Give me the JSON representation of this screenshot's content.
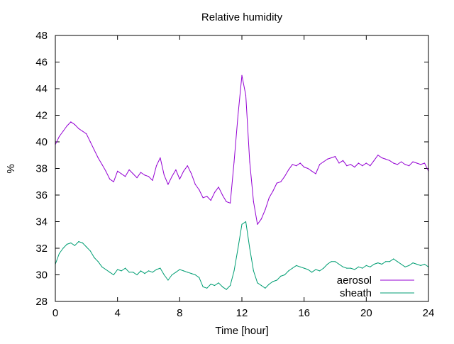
{
  "chart_data": {
    "type": "line",
    "title": "Relative humidity",
    "xlabel": "Time [hour]",
    "ylabel": "%",
    "xlim": [
      0,
      24
    ],
    "ylim": [
      28,
      48
    ],
    "xticks": [
      0,
      4,
      8,
      12,
      16,
      20,
      24
    ],
    "yticks": [
      28,
      30,
      32,
      34,
      36,
      38,
      40,
      42,
      44,
      46,
      48
    ],
    "grid": false,
    "legend_position": "bottom-right",
    "series": [
      {
        "name": "aerosol",
        "color": "#9400d3",
        "x": [
          0,
          0.25,
          0.5,
          0.75,
          1.0,
          1.25,
          1.5,
          1.75,
          2.0,
          2.25,
          2.5,
          2.75,
          3.0,
          3.25,
          3.5,
          3.75,
          4.0,
          4.25,
          4.5,
          4.75,
          5.0,
          5.25,
          5.5,
          5.75,
          6.0,
          6.25,
          6.5,
          6.75,
          7.0,
          7.25,
          7.5,
          7.75,
          8.0,
          8.25,
          8.5,
          8.75,
          9.0,
          9.25,
          9.5,
          9.75,
          10.0,
          10.25,
          10.5,
          10.75,
          11.0,
          11.25,
          11.5,
          11.75,
          12.0,
          12.25,
          12.5,
          12.75,
          13.0,
          13.25,
          13.5,
          13.75,
          14.0,
          14.25,
          14.5,
          14.75,
          15.0,
          15.25,
          15.5,
          15.75,
          16.0,
          16.25,
          16.5,
          16.75,
          17.0,
          17.25,
          17.5,
          17.75,
          18.0,
          18.25,
          18.5,
          18.75,
          19.0,
          19.25,
          19.5,
          19.75,
          20.0,
          20.25,
          20.5,
          20.75,
          21.0,
          21.25,
          21.5,
          21.75,
          22.0,
          22.25,
          22.5,
          22.75,
          23.0,
          23.25,
          23.5,
          23.75,
          24.0
        ],
        "y": [
          39.8,
          40.4,
          40.8,
          41.2,
          41.5,
          41.3,
          41.0,
          40.8,
          40.6,
          40.0,
          39.4,
          38.8,
          38.3,
          37.8,
          37.2,
          37.0,
          37.8,
          37.6,
          37.4,
          37.9,
          37.6,
          37.3,
          37.7,
          37.5,
          37.4,
          37.1,
          38.2,
          38.8,
          37.5,
          36.8,
          37.4,
          37.9,
          37.2,
          37.8,
          38.2,
          37.6,
          36.8,
          36.4,
          35.8,
          35.9,
          35.6,
          36.2,
          36.6,
          36.0,
          35.5,
          35.4,
          38.5,
          42.0,
          45.0,
          43.5,
          38.5,
          35.5,
          33.8,
          34.2,
          34.9,
          35.8,
          36.3,
          36.9,
          37.0,
          37.4,
          37.9,
          38.3,
          38.2,
          38.4,
          38.1,
          38.0,
          37.8,
          37.6,
          38.3,
          38.5,
          38.7,
          38.8,
          38.9,
          38.4,
          38.6,
          38.2,
          38.3,
          38.1,
          38.4,
          38.2,
          38.4,
          38.2,
          38.6,
          39.0,
          38.8,
          38.7,
          38.6,
          38.4,
          38.3,
          38.5,
          38.3,
          38.2,
          38.5,
          38.4,
          38.3,
          38.4,
          37.8
        ]
      },
      {
        "name": "sheath",
        "color": "#009e73",
        "x": [
          0,
          0.25,
          0.5,
          0.75,
          1.0,
          1.25,
          1.5,
          1.75,
          2.0,
          2.25,
          2.5,
          2.75,
          3.0,
          3.25,
          3.5,
          3.75,
          4.0,
          4.25,
          4.5,
          4.75,
          5.0,
          5.25,
          5.5,
          5.75,
          6.0,
          6.25,
          6.5,
          6.75,
          7.0,
          7.25,
          7.5,
          7.75,
          8.0,
          8.25,
          8.5,
          8.75,
          9.0,
          9.25,
          9.5,
          9.75,
          10.0,
          10.25,
          10.5,
          10.75,
          11.0,
          11.25,
          11.5,
          11.75,
          12.0,
          12.25,
          12.5,
          12.75,
          13.0,
          13.25,
          13.5,
          13.75,
          14.0,
          14.25,
          14.5,
          14.75,
          15.0,
          15.25,
          15.5,
          15.75,
          16.0,
          16.25,
          16.5,
          16.75,
          17.0,
          17.25,
          17.5,
          17.75,
          18.0,
          18.25,
          18.5,
          18.75,
          19.0,
          19.25,
          19.5,
          19.75,
          20.0,
          20.25,
          20.5,
          20.75,
          21.0,
          21.25,
          21.5,
          21.75,
          22.0,
          22.25,
          22.5,
          22.75,
          23.0,
          23.25,
          23.5,
          23.75,
          24.0
        ],
        "y": [
          30.8,
          31.6,
          32.0,
          32.3,
          32.4,
          32.2,
          32.5,
          32.4,
          32.1,
          31.8,
          31.3,
          31.0,
          30.6,
          30.4,
          30.2,
          30.0,
          30.4,
          30.3,
          30.5,
          30.2,
          30.2,
          30.0,
          30.3,
          30.1,
          30.3,
          30.2,
          30.4,
          30.5,
          30.0,
          29.6,
          30.0,
          30.2,
          30.4,
          30.3,
          30.2,
          30.1,
          30.0,
          29.8,
          29.1,
          29.0,
          29.3,
          29.2,
          29.4,
          29.1,
          28.9,
          29.2,
          30.3,
          32.0,
          33.8,
          34.0,
          32.0,
          30.3,
          29.4,
          29.2,
          29.0,
          29.3,
          29.5,
          29.6,
          29.9,
          30.0,
          30.3,
          30.5,
          30.7,
          30.6,
          30.5,
          30.4,
          30.2,
          30.4,
          30.3,
          30.5,
          30.8,
          31.0,
          31.0,
          30.8,
          30.6,
          30.5,
          30.5,
          30.4,
          30.6,
          30.5,
          30.7,
          30.6,
          30.8,
          30.9,
          30.8,
          31.0,
          31.0,
          31.2,
          31.0,
          30.8,
          30.6,
          30.7,
          30.9,
          30.8,
          30.7,
          30.8,
          30.6
        ]
      }
    ]
  }
}
